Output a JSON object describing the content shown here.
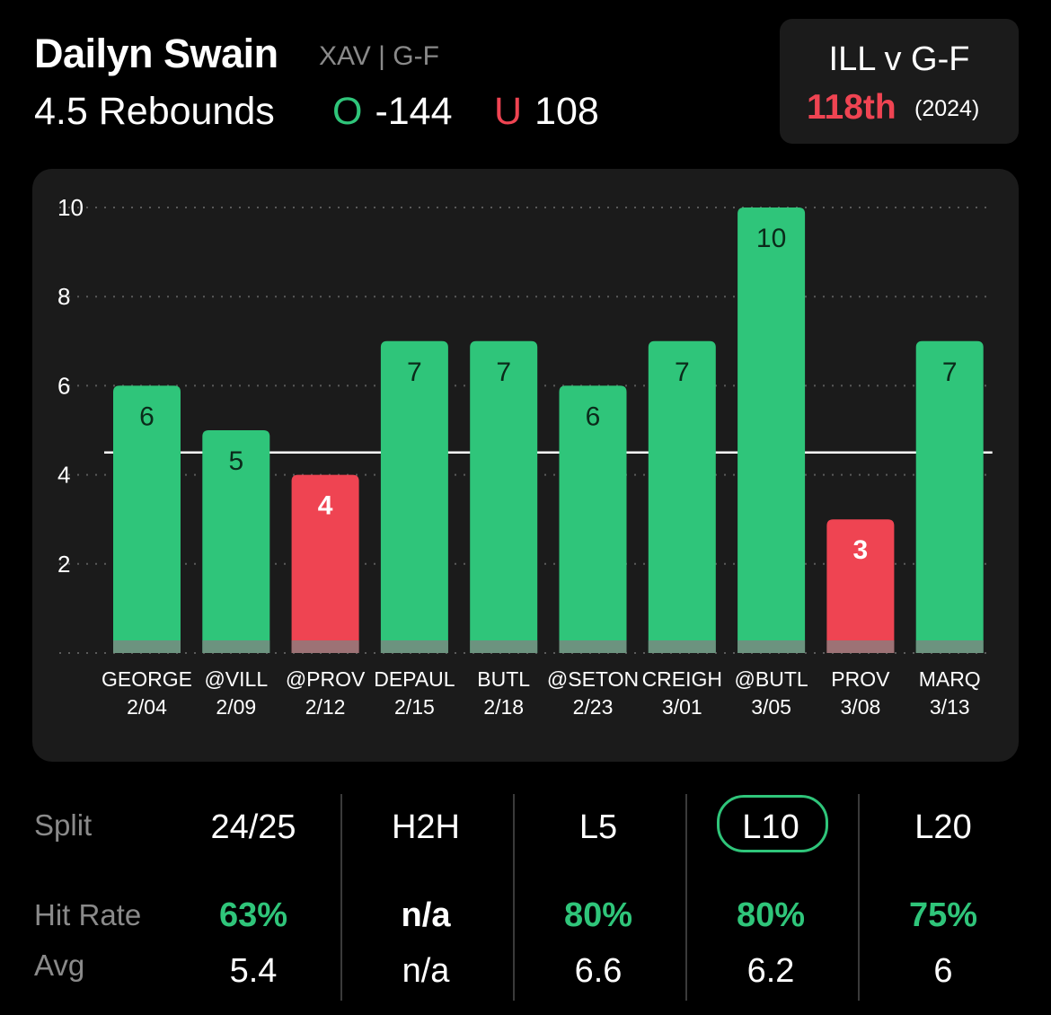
{
  "player": {
    "name": "Dailyn Swain",
    "team_pos": "XAV | G-F"
  },
  "prop": {
    "line_label": "4.5 Rebounds",
    "over_letter": "O",
    "over_odds": "-144",
    "under_letter": "U",
    "under_odds": "108"
  },
  "matchup": {
    "title": "ILL v G-F",
    "rank": "118th",
    "year": "(2024)"
  },
  "colors": {
    "over": "#2fc57a",
    "under": "#ef4452",
    "panel": "#1b1b1b"
  },
  "chart_data": {
    "type": "bar",
    "categories": [
      "GEORGE 2/04",
      "@VILL 2/09",
      "@PROV 2/12",
      "DEPAUL 2/15",
      "BUTL 2/18",
      "@SETON 2/23",
      "CREIGH 3/01",
      "@BUTL 3/05",
      "PROV 3/08",
      "MARQ 3/13"
    ],
    "opponents": [
      "GEORGE",
      "@VILL",
      "@PROV",
      "DEPAUL",
      "BUTL",
      "@SETON",
      "CREIGH",
      "@BUTL",
      "PROV",
      "MARQ"
    ],
    "dates": [
      "2/04",
      "2/09",
      "2/12",
      "2/15",
      "2/18",
      "2/23",
      "3/01",
      "3/05",
      "3/08",
      "3/13"
    ],
    "values": [
      6,
      5,
      4,
      7,
      7,
      6,
      7,
      10,
      3,
      7
    ],
    "line": 4.5,
    "yticks": [
      2,
      4,
      6,
      8,
      10
    ],
    "ylim": [
      0,
      10
    ],
    "grid": true
  },
  "stats": {
    "row_labels": {
      "split": "Split",
      "hit_rate": "Hit Rate",
      "avg": "Avg"
    },
    "selected": "L10",
    "columns": [
      {
        "header": "24/25",
        "hit_rate": "63%",
        "avg": "5.4"
      },
      {
        "header": "H2H",
        "hit_rate": "n/a",
        "avg": "n/a"
      },
      {
        "header": "L5",
        "hit_rate": "80%",
        "avg": "6.6"
      },
      {
        "header": "L10",
        "hit_rate": "80%",
        "avg": "6.2"
      },
      {
        "header": "L20",
        "hit_rate": "75%",
        "avg": "6"
      }
    ]
  }
}
